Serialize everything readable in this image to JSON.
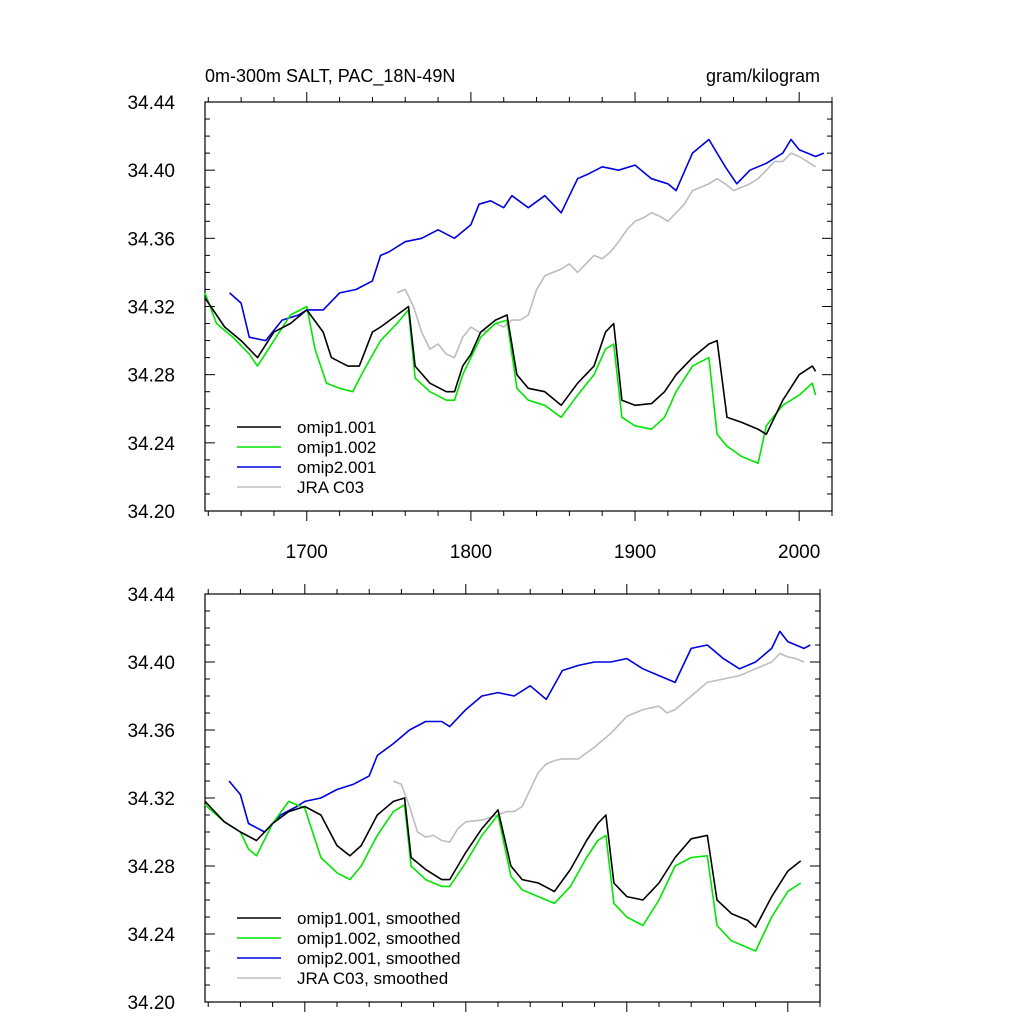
{
  "figure": {
    "title_left": "0m-300m SALT, PAC_18N-49N",
    "title_right": "gram/kilogram"
  },
  "colors": {
    "omip1_001": "#000000",
    "omip1_002": "#00e600",
    "omip2_001": "#0000e0",
    "jra_c03": "#bdbdbd"
  },
  "chart_data": [
    {
      "type": "line",
      "title": "0m-300m SALT, PAC_18N-49N",
      "units": "gram/kilogram",
      "xlim": [
        1638,
        2020
      ],
      "ylim": [
        34.2,
        34.44
      ],
      "x_ticks": [
        1700,
        1800,
        1900,
        2000
      ],
      "x_tick_labels": [
        "1700",
        "1800",
        "1900",
        "2000"
      ],
      "y_ticks": [
        34.2,
        34.24,
        34.28,
        34.32,
        34.36,
        34.4,
        34.44
      ],
      "y_tick_labels": [
        "34.20",
        "34.24",
        "34.28",
        "34.32",
        "34.36",
        "34.40",
        "34.44"
      ],
      "legend_position": "bottom-left",
      "series": [
        {
          "name": "omip1.001",
          "color": "#000000",
          "x": [
            1638,
            1650,
            1660,
            1670,
            1680,
            1690,
            1700,
            1710,
            1715,
            1725,
            1732,
            1740,
            1745,
            1755,
            1762,
            1766,
            1775,
            1785,
            1790,
            1795,
            1800,
            1806,
            1815,
            1822,
            1828,
            1835,
            1845,
            1855,
            1865,
            1875,
            1882,
            1887,
            1892,
            1900,
            1910,
            1918,
            1925,
            1935,
            1945,
            1950,
            1956,
            1965,
            1975,
            1980,
            1990,
            2000,
            2008,
            2010
          ],
          "y": [
            34.325,
            34.308,
            34.3,
            34.29,
            34.305,
            34.31,
            34.318,
            34.305,
            34.29,
            34.285,
            34.285,
            34.305,
            34.308,
            34.315,
            34.32,
            34.285,
            34.275,
            34.27,
            34.27,
            34.285,
            34.292,
            34.305,
            34.312,
            34.315,
            34.28,
            34.272,
            34.27,
            34.262,
            34.275,
            34.285,
            34.305,
            34.31,
            34.265,
            34.262,
            34.263,
            34.27,
            34.28,
            34.29,
            34.298,
            34.3,
            34.255,
            34.252,
            34.248,
            34.245,
            34.265,
            34.28,
            34.285,
            34.282
          ]
        },
        {
          "name": "omip1.002",
          "color": "#00e600",
          "x": [
            1638,
            1645,
            1655,
            1665,
            1670,
            1680,
            1690,
            1700,
            1705,
            1712,
            1720,
            1728,
            1735,
            1745,
            1755,
            1762,
            1766,
            1775,
            1785,
            1790,
            1795,
            1800,
            1806,
            1815,
            1822,
            1828,
            1835,
            1845,
            1855,
            1865,
            1875,
            1882,
            1887,
            1892,
            1900,
            1910,
            1918,
            1925,
            1935,
            1945,
            1950,
            1956,
            1965,
            1975,
            1980,
            1990,
            2000,
            2008,
            2010
          ],
          "y": [
            34.328,
            34.31,
            34.302,
            34.292,
            34.285,
            34.3,
            34.315,
            34.32,
            34.295,
            34.275,
            34.272,
            34.27,
            34.283,
            34.3,
            34.31,
            34.318,
            34.278,
            34.27,
            34.265,
            34.265,
            34.28,
            34.29,
            34.302,
            34.31,
            34.312,
            34.272,
            34.265,
            34.262,
            34.255,
            34.268,
            34.28,
            34.295,
            34.298,
            34.255,
            34.25,
            34.248,
            34.255,
            34.27,
            34.285,
            34.29,
            34.245,
            34.238,
            34.232,
            34.228,
            34.25,
            34.262,
            34.268,
            34.275,
            34.268
          ]
        },
        {
          "name": "omip2.001",
          "color": "#0000e0",
          "x": [
            1653,
            1660,
            1665,
            1675,
            1685,
            1695,
            1700,
            1710,
            1720,
            1730,
            1740,
            1745,
            1750,
            1760,
            1770,
            1780,
            1790,
            1800,
            1805,
            1812,
            1820,
            1825,
            1835,
            1845,
            1855,
            1865,
            1872,
            1880,
            1890,
            1900,
            1910,
            1920,
            1925,
            1935,
            1945,
            1955,
            1962,
            1970,
            1980,
            1990,
            1995,
            2000,
            2010,
            2015
          ],
          "y": [
            34.328,
            34.322,
            34.302,
            34.3,
            34.312,
            34.315,
            34.318,
            34.318,
            34.328,
            34.33,
            34.335,
            34.35,
            34.352,
            34.358,
            34.36,
            34.365,
            34.36,
            34.368,
            34.38,
            34.382,
            34.378,
            34.385,
            34.378,
            34.385,
            34.375,
            34.395,
            34.398,
            34.402,
            34.4,
            34.403,
            34.395,
            34.392,
            34.388,
            34.41,
            34.418,
            34.402,
            34.392,
            34.4,
            34.404,
            34.41,
            34.418,
            34.412,
            34.408,
            34.41
          ]
        },
        {
          "name": "JRA C03",
          "color": "#bdbdbd",
          "x": [
            1755,
            1760,
            1765,
            1770,
            1775,
            1780,
            1785,
            1790,
            1795,
            1800,
            1805,
            1810,
            1815,
            1820,
            1825,
            1830,
            1835,
            1840,
            1845,
            1850,
            1855,
            1860,
            1865,
            1870,
            1875,
            1880,
            1885,
            1890,
            1895,
            1900,
            1905,
            1910,
            1915,
            1920,
            1925,
            1930,
            1935,
            1940,
            1945,
            1950,
            1955,
            1960,
            1965,
            1970,
            1975,
            1980,
            1985,
            1990,
            1995,
            2000,
            2005,
            2010
          ],
          "y": [
            34.328,
            34.33,
            34.32,
            34.305,
            34.295,
            34.298,
            34.292,
            34.29,
            34.302,
            34.308,
            34.305,
            34.306,
            34.31,
            34.308,
            34.312,
            34.312,
            34.315,
            34.33,
            34.338,
            34.34,
            34.342,
            34.345,
            34.34,
            34.345,
            34.35,
            34.348,
            34.352,
            34.358,
            34.365,
            34.37,
            34.372,
            34.375,
            34.373,
            34.37,
            34.375,
            34.38,
            34.388,
            34.39,
            34.392,
            34.395,
            34.392,
            34.388,
            34.39,
            34.392,
            34.395,
            34.4,
            34.405,
            34.405,
            34.41,
            34.408,
            34.405,
            34.402
          ]
        }
      ]
    },
    {
      "type": "line",
      "xlim": [
        1638,
        2020
      ],
      "ylim": [
        34.2,
        34.44
      ],
      "x_ticks": [
        1700,
        1800,
        1900,
        2000
      ],
      "y_ticks": [
        34.2,
        34.24,
        34.28,
        34.32,
        34.36,
        34.4,
        34.44
      ],
      "y_tick_labels": [
        "34.20",
        "34.24",
        "34.28",
        "34.32",
        "34.36",
        "34.40",
        "34.44"
      ],
      "legend_position": "bottom-left",
      "series": [
        {
          "name": "omip1.001, smoothed",
          "color": "#000000",
          "x": [
            1638,
            1650,
            1660,
            1670,
            1680,
            1690,
            1700,
            1710,
            1720,
            1728,
            1735,
            1745,
            1755,
            1762,
            1766,
            1775,
            1785,
            1790,
            1800,
            1810,
            1820,
            1828,
            1835,
            1845,
            1855,
            1865,
            1875,
            1882,
            1887,
            1892,
            1900,
            1910,
            1920,
            1930,
            1940,
            1950,
            1956,
            1965,
            1975,
            1980,
            1990,
            2000,
            2008
          ],
          "y": [
            34.318,
            34.306,
            34.3,
            34.295,
            34.305,
            34.312,
            34.315,
            34.31,
            34.292,
            34.286,
            34.292,
            34.31,
            34.318,
            34.32,
            34.285,
            34.278,
            34.272,
            34.272,
            34.288,
            34.302,
            34.313,
            34.28,
            34.272,
            34.27,
            34.265,
            34.278,
            34.295,
            34.305,
            34.31,
            34.27,
            34.262,
            34.26,
            34.27,
            34.285,
            34.296,
            34.298,
            34.26,
            34.252,
            34.248,
            34.244,
            34.262,
            34.277,
            34.283
          ]
        },
        {
          "name": "omip1.002, smoothed",
          "color": "#00e600",
          "x": [
            1638,
            1650,
            1660,
            1665,
            1670,
            1680,
            1690,
            1700,
            1710,
            1720,
            1728,
            1735,
            1745,
            1755,
            1762,
            1766,
            1775,
            1785,
            1790,
            1800,
            1810,
            1820,
            1828,
            1835,
            1845,
            1855,
            1865,
            1875,
            1882,
            1887,
            1892,
            1900,
            1910,
            1920,
            1930,
            1940,
            1950,
            1956,
            1965,
            1975,
            1980,
            1990,
            2000,
            2008
          ],
          "y": [
            34.316,
            34.306,
            34.3,
            34.29,
            34.286,
            34.305,
            34.318,
            34.314,
            34.285,
            34.276,
            34.272,
            34.28,
            34.298,
            34.312,
            34.316,
            34.28,
            34.272,
            34.268,
            34.268,
            34.282,
            34.298,
            34.31,
            34.274,
            34.266,
            34.262,
            34.258,
            34.268,
            34.285,
            34.295,
            34.298,
            34.258,
            34.25,
            34.245,
            34.26,
            34.28,
            34.285,
            34.286,
            34.245,
            34.236,
            34.232,
            34.23,
            34.25,
            34.265,
            34.27
          ]
        },
        {
          "name": "omip2.001, smoothed",
          "color": "#0000e0",
          "x": [
            1653,
            1660,
            1665,
            1675,
            1685,
            1695,
            1700,
            1710,
            1720,
            1730,
            1740,
            1745,
            1755,
            1765,
            1775,
            1785,
            1790,
            1800,
            1810,
            1820,
            1830,
            1840,
            1850,
            1860,
            1870,
            1880,
            1890,
            1900,
            1910,
            1920,
            1930,
            1940,
            1950,
            1960,
            1970,
            1980,
            1990,
            1995,
            2000,
            2010,
            2014
          ],
          "y": [
            34.33,
            34.322,
            34.305,
            34.3,
            34.31,
            34.315,
            34.318,
            34.32,
            34.325,
            34.328,
            34.333,
            34.345,
            34.352,
            34.36,
            34.365,
            34.365,
            34.362,
            34.372,
            34.38,
            34.382,
            34.38,
            34.386,
            34.378,
            34.395,
            34.398,
            34.4,
            34.4,
            34.402,
            34.396,
            34.392,
            34.388,
            34.408,
            34.41,
            34.402,
            34.396,
            34.4,
            34.408,
            34.418,
            34.412,
            34.408,
            34.41
          ]
        },
        {
          "name": "JRA C03, smoothed",
          "color": "#bdbdbd",
          "x": [
            1755,
            1760,
            1765,
            1770,
            1775,
            1780,
            1785,
            1790,
            1795,
            1800,
            1810,
            1820,
            1825,
            1830,
            1835,
            1840,
            1845,
            1850,
            1855,
            1860,
            1870,
            1880,
            1890,
            1900,
            1910,
            1920,
            1925,
            1930,
            1940,
            1950,
            1960,
            1970,
            1980,
            1990,
            1995,
            2000,
            2005,
            2010
          ],
          "y": [
            34.33,
            34.328,
            34.315,
            34.3,
            34.297,
            34.298,
            34.295,
            34.294,
            34.302,
            34.306,
            34.307,
            34.31,
            34.312,
            34.312,
            34.315,
            34.325,
            34.335,
            34.34,
            34.342,
            34.343,
            34.343,
            34.35,
            34.358,
            34.368,
            34.372,
            34.374,
            34.37,
            34.372,
            34.38,
            34.388,
            34.39,
            34.392,
            34.396,
            34.4,
            34.405,
            34.403,
            34.402,
            34.4
          ]
        }
      ]
    }
  ]
}
